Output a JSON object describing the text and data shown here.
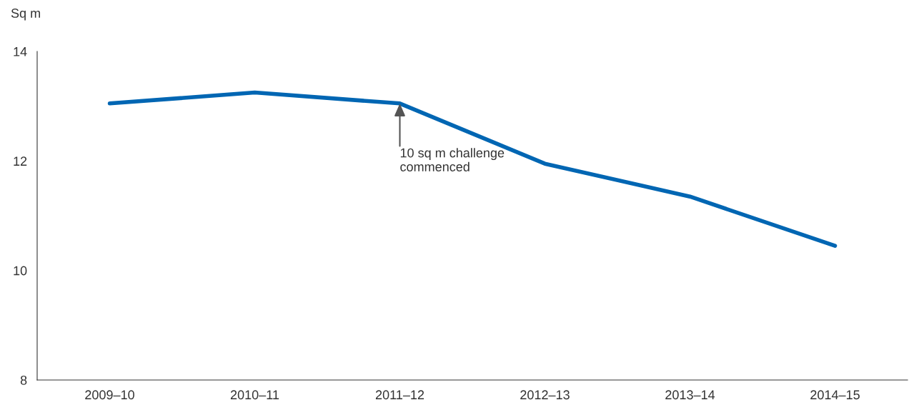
{
  "chart_data": {
    "type": "line",
    "ylabel": "Sq m",
    "categories": [
      "2009–10",
      "2010–11",
      "2011–12",
      "2012–13",
      "2013–14",
      "2014–15"
    ],
    "series": [
      {
        "color": "#0066b3",
        "values": [
          13.05,
          13.25,
          13.05,
          11.95,
          11.35,
          10.45
        ]
      }
    ],
    "ylim": [
      8,
      14
    ],
    "yticks": [
      8,
      10,
      12,
      14
    ],
    "grid": false,
    "marker": "none",
    "line_style": "solid",
    "annotations": [
      {
        "text": "10 sq m challenge\ncommenced",
        "x": "2011–12",
        "y": 13.05
      }
    ]
  }
}
